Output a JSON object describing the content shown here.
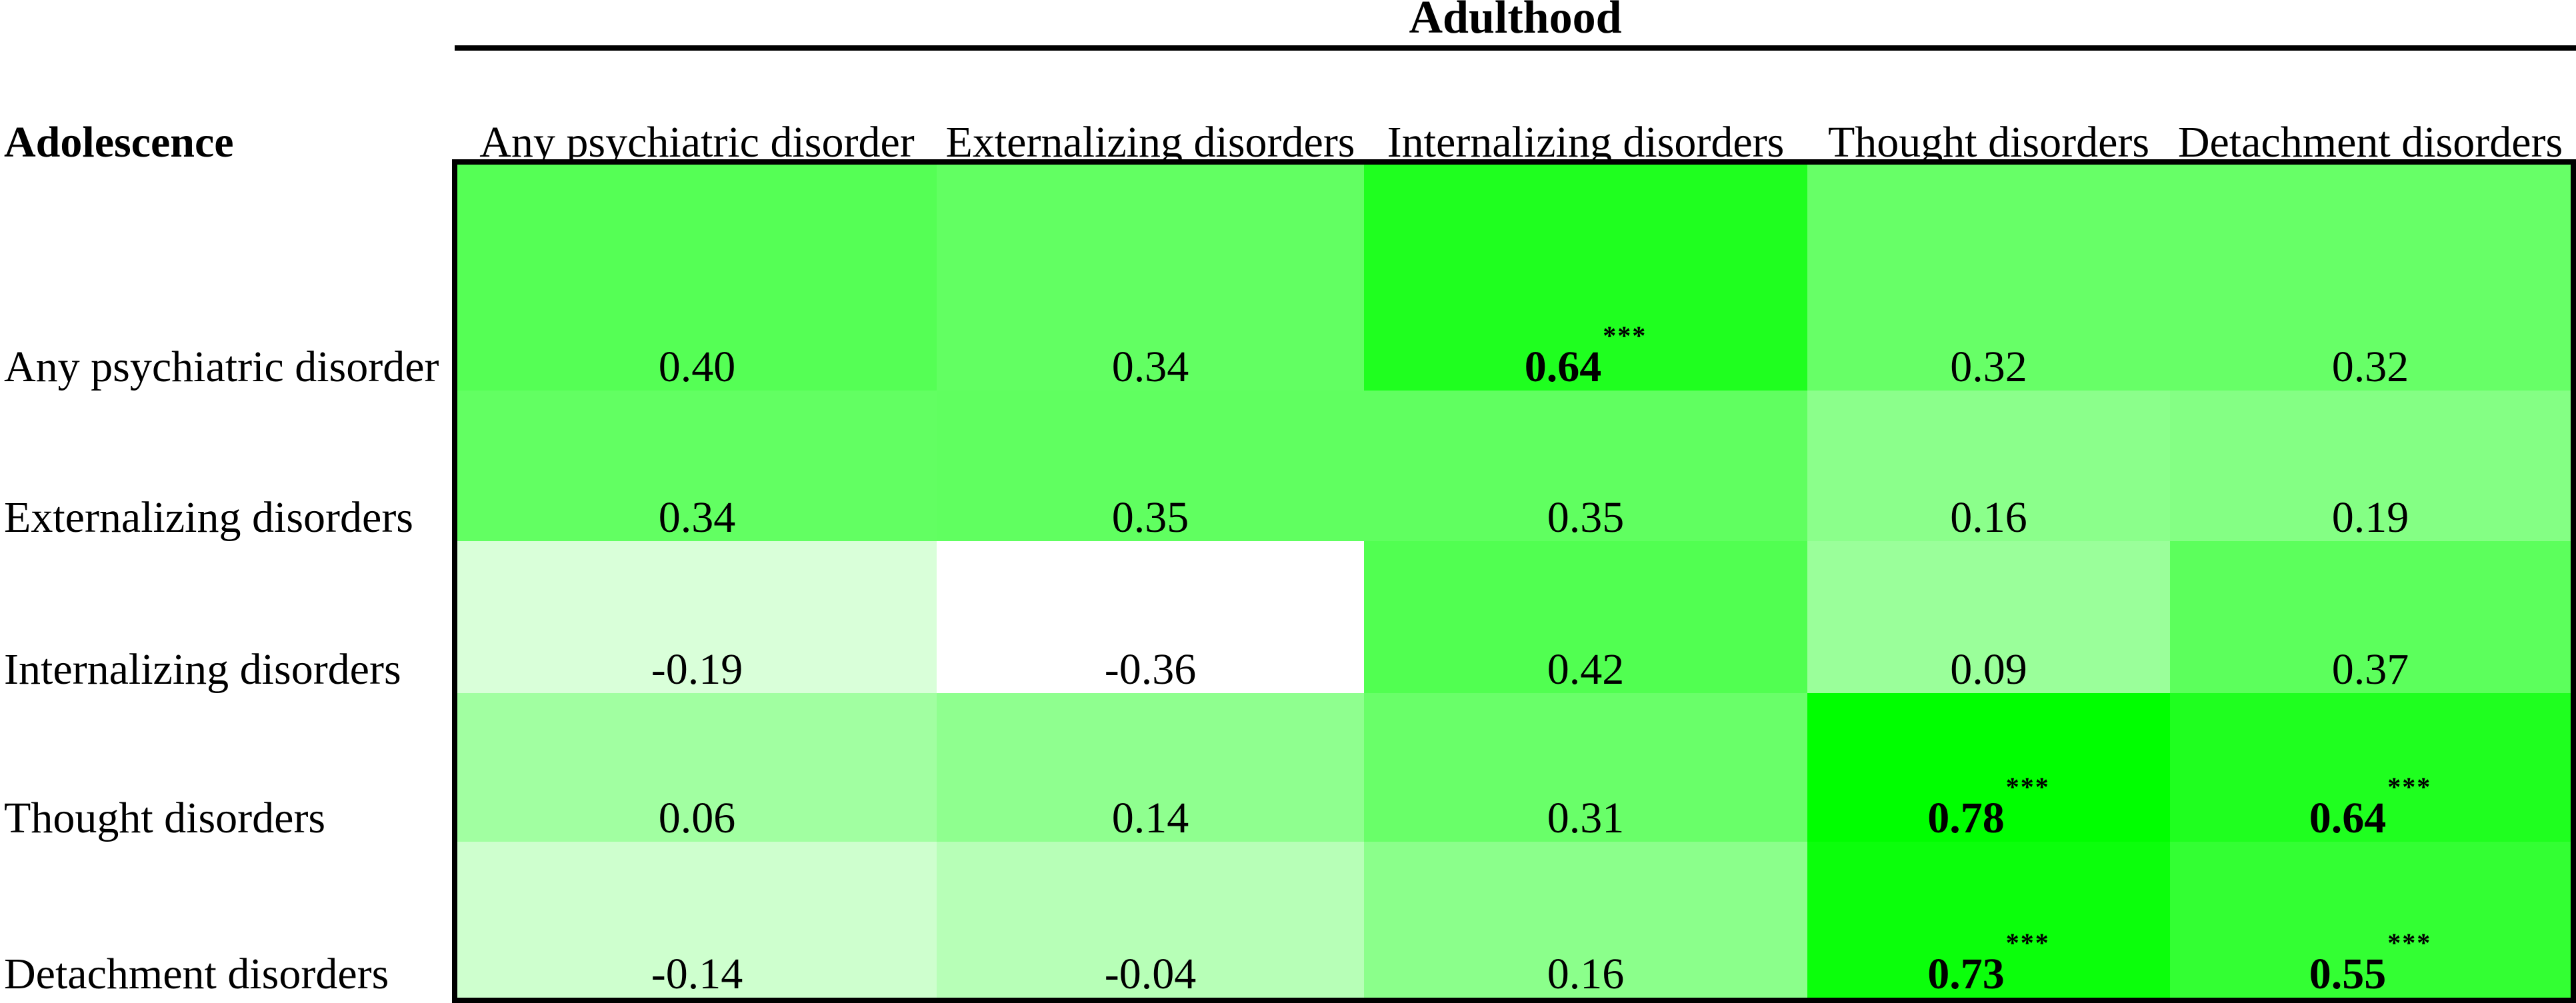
{
  "figure": {
    "top_axis_title": "Adulthood",
    "left_axis_title": "Adolescence"
  },
  "chart_data": {
    "type": "heatmap",
    "title": "Adulthood",
    "xlabel": "Adulthood",
    "ylabel": "Adolescence",
    "columns": [
      "Any psychiatric disorder",
      "Externalizing disorders",
      "Internalizing disorders",
      "Thought disorders",
      "Detachment disorders"
    ],
    "rows": [
      "Any psychiatric disorder",
      "Externalizing disorders",
      "Internalizing disorders",
      "Thought disorders",
      "Detachment disorders"
    ],
    "values": [
      [
        0.4,
        0.34,
        0.64,
        0.32,
        0.32
      ],
      [
        0.34,
        0.35,
        0.35,
        0.16,
        0.19
      ],
      [
        -0.19,
        -0.36,
        0.42,
        0.09,
        0.37
      ],
      [
        0.06,
        0.14,
        0.31,
        0.78,
        0.64
      ],
      [
        -0.14,
        -0.04,
        0.16,
        0.73,
        0.55
      ]
    ],
    "display": [
      [
        "0.40",
        "0.34",
        "0.64",
        "0.32",
        "0.32"
      ],
      [
        "0.34",
        "0.35",
        "0.35",
        "0.16",
        "0.19"
      ],
      [
        "-0.19",
        "-0.36",
        "0.42",
        "0.09",
        "0.37"
      ],
      [
        "0.06",
        "0.14",
        "0.31",
        "0.78",
        "0.64"
      ],
      [
        "-0.14",
        "-0.04",
        "0.16",
        "0.73",
        "0.55"
      ]
    ],
    "significance": [
      [
        null,
        null,
        "***",
        null,
        null
      ],
      [
        null,
        null,
        null,
        null,
        null
      ],
      [
        null,
        null,
        null,
        null,
        null
      ],
      [
        null,
        null,
        null,
        "***",
        "***"
      ],
      [
        null,
        null,
        null,
        "***",
        "***"
      ]
    ],
    "cell_colors": [
      [
        "#55FF55",
        "#62FF62",
        "#1FFF1F",
        "#67FF67",
        "#67FF67"
      ],
      [
        "#62FF62",
        "#60FF60",
        "#60FF60",
        "#8BFF8B",
        "#84FF84"
      ],
      [
        "#D9FFD9",
        "#FFFFFF",
        "#51FF51",
        "#9AFF9A",
        "#5CFF5C"
      ],
      [
        "#A1FFA1",
        "#8FFF8F",
        "#69FF69",
        "#00FF00",
        "#1FFF1F"
      ],
      [
        "#CEFFCE",
        "#B7FFB7",
        "#8BFF8B",
        "#0BFF0B",
        "#33FF33"
      ]
    ],
    "color_scale": {
      "min_value": -0.36,
      "max_value": 0.78,
      "min_color": "#FFFFFF",
      "max_color": "#00FF00"
    },
    "legend_position": "none",
    "grid": false
  }
}
